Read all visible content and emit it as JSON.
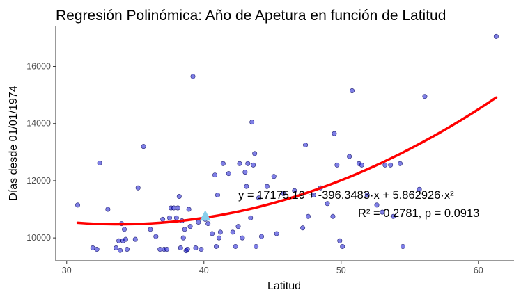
{
  "chart_data": {
    "type": "scatter",
    "title": "Regresión Polinómica: Año de Apetura en función de Latitud",
    "xlabel": "Latitud",
    "ylabel": "Días desde 01/01/1974",
    "xlim": [
      29.2,
      62.6
    ],
    "ylim": [
      9200,
      17400
    ],
    "x_ticks": [
      30,
      40,
      50,
      60
    ],
    "y_ticks": [
      10000,
      12000,
      14000,
      16000
    ],
    "grid": false,
    "colors": {
      "points": "#0000cd",
      "fit_line": "#ff0000",
      "mean_marker": "#87ceeb"
    },
    "points": [
      [
        30.8,
        11150
      ],
      [
        31.9,
        9650
      ],
      [
        32.2,
        9600
      ],
      [
        32.4,
        12620
      ],
      [
        33.0,
        11000
      ],
      [
        33.6,
        9650
      ],
      [
        33.8,
        9900
      ],
      [
        33.9,
        9560
      ],
      [
        34.0,
        10500
      ],
      [
        34.1,
        9900
      ],
      [
        34.2,
        10300
      ],
      [
        34.3,
        9950
      ],
      [
        34.4,
        9600
      ],
      [
        35.0,
        9950
      ],
      [
        35.2,
        11750
      ],
      [
        35.6,
        13200
      ],
      [
        36.1,
        10300
      ],
      [
        36.5,
        10050
      ],
      [
        36.8,
        9600
      ],
      [
        37.0,
        10650
      ],
      [
        37.1,
        9600
      ],
      [
        37.3,
        9600
      ],
      [
        37.5,
        10700
      ],
      [
        37.6,
        11050
      ],
      [
        37.8,
        11050
      ],
      [
        38.0,
        10700
      ],
      [
        38.1,
        11050
      ],
      [
        38.2,
        11450
      ],
      [
        38.3,
        9650
      ],
      [
        38.4,
        10600
      ],
      [
        38.5,
        10000
      ],
      [
        38.6,
        10300
      ],
      [
        38.7,
        9550
      ],
      [
        38.8,
        9600
      ],
      [
        38.9,
        11000
      ],
      [
        39.0,
        10400
      ],
      [
        39.2,
        15650
      ],
      [
        39.4,
        9650
      ],
      [
        39.6,
        10550
      ],
      [
        39.8,
        9600
      ],
      [
        40.1,
        10650
      ],
      [
        40.3,
        10500
      ],
      [
        40.6,
        10150
      ],
      [
        40.8,
        12200
      ],
      [
        40.9,
        9700
      ],
      [
        41.0,
        11500
      ],
      [
        41.1,
        10000
      ],
      [
        41.2,
        10200
      ],
      [
        41.4,
        12600
      ],
      [
        41.8,
        12250
      ],
      [
        42.1,
        10200
      ],
      [
        42.3,
        9700
      ],
      [
        42.5,
        10400
      ],
      [
        42.6,
        12600
      ],
      [
        42.8,
        10000
      ],
      [
        43.0,
        12300
      ],
      [
        43.1,
        11800
      ],
      [
        43.2,
        12600
      ],
      [
        43.4,
        10700
      ],
      [
        43.5,
        14050
      ],
      [
        43.6,
        12550
      ],
      [
        43.7,
        12950
      ],
      [
        43.8,
        9700
      ],
      [
        44.0,
        11400
      ],
      [
        44.2,
        10050
      ],
      [
        44.6,
        11800
      ],
      [
        45.1,
        12150
      ],
      [
        45.3,
        10150
      ],
      [
        45.8,
        11550
      ],
      [
        46.6,
        11650
      ],
      [
        47.2,
        10350
      ],
      [
        47.4,
        13250
      ],
      [
        47.6,
        10750
      ],
      [
        48.0,
        11500
      ],
      [
        48.5,
        11750
      ],
      [
        49.0,
        11200
      ],
      [
        49.4,
        10750
      ],
      [
        49.5,
        13650
      ],
      [
        49.7,
        12550
      ],
      [
        49.9,
        9900
      ],
      [
        50.1,
        9700
      ],
      [
        50.6,
        12850
      ],
      [
        50.8,
        15150
      ],
      [
        51.3,
        12600
      ],
      [
        51.5,
        12550
      ],
      [
        51.9,
        11500
      ],
      [
        52.6,
        11150
      ],
      [
        53.0,
        10900
      ],
      [
        53.2,
        12550
      ],
      [
        53.6,
        12550
      ],
      [
        53.8,
        10750
      ],
      [
        54.3,
        12600
      ],
      [
        54.5,
        9700
      ],
      [
        55.7,
        11700
      ],
      [
        56.1,
        14950
      ],
      [
        61.3,
        17050
      ]
    ],
    "fit": {
      "type": "polynomial",
      "degree": 2,
      "coefficients": [
        17175.19,
        -396.3483,
        5.862926
      ],
      "x_range": [
        30.8,
        61.3
      ]
    },
    "mean_marker": {
      "x": 40.1,
      "y": 10750
    },
    "annotations": {
      "equation": "y = 17175.19 + -396.3483·x + 5.862926·x²",
      "stats": "R² = 0.2781, p = 0.0913"
    }
  }
}
